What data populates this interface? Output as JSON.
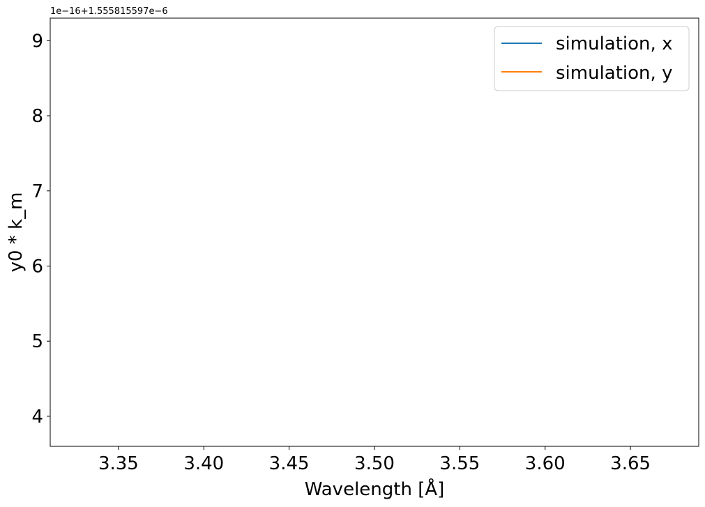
{
  "chart_data": {
    "type": "line",
    "title": "",
    "xlabel": "Wavelength [Å]",
    "ylabel": "y0 * k_m",
    "y_offset_text": "1e−16+1.555815597e−6",
    "xlim": [
      3.31,
      3.69
    ],
    "ylim": [
      3.6,
      9.3
    ],
    "x_ticks": [
      3.35,
      3.4,
      3.45,
      3.5,
      3.55,
      3.6,
      3.65
    ],
    "x_tick_labels": [
      "3.35",
      "3.40",
      "3.45",
      "3.50",
      "3.55",
      "3.60",
      "3.65"
    ],
    "y_ticks": [
      4,
      5,
      6,
      7,
      8,
      9
    ],
    "y_tick_labels": [
      "4",
      "5",
      "6",
      "7",
      "8",
      "9"
    ],
    "grid": false,
    "legend_position": "upper right",
    "series": [
      {
        "name": "simulation, x",
        "color": "#1f77b4",
        "x": [],
        "y": []
      },
      {
        "name": "simulation, y",
        "color": "#ff7f0e",
        "x": [],
        "y": []
      }
    ]
  }
}
